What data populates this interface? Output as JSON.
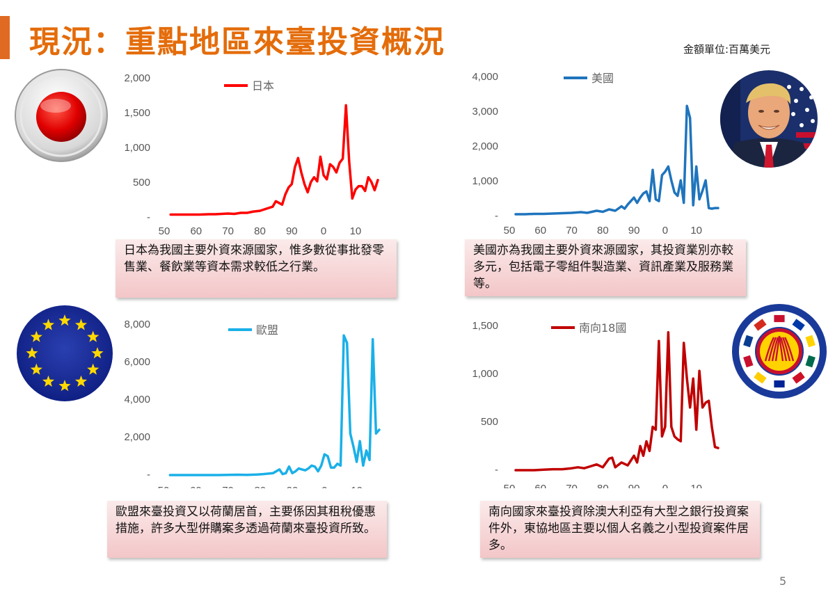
{
  "header": {
    "title": "現況：重點地區來臺投資概況",
    "unit": "金額單位:百萬美元"
  },
  "page_number": "5",
  "x_ticks": [
    "50",
    "60",
    "70",
    "80",
    "90",
    "0",
    "10"
  ],
  "notes": {
    "japan": "日本為我國主要外資來源國家，惟多數從事批發零售業、餐飲業等資本需求較低之行業。",
    "usa": "美國亦為我國主要外資來源國家，其投資業別亦較多元，包括電子零組件製造業、資訊產業及服務業等。",
    "eu": "歐盟來臺投資又以荷蘭居首，主要係因其租稅優惠措施，許多大型併購案多透過荷蘭來臺投資所致。",
    "south": "南向國家來臺投資除澳大利亞有大型之銀行投資案件外，東協地區主要以個人名義之小型投資案件居多。"
  },
  "icons": {
    "japan": "japan-flag-icon",
    "usa": "us-president-photo-icon",
    "eu": "eu-flag-icon",
    "south": "asean-emblem-icon"
  },
  "chart_data": [
    {
      "type": "line",
      "series": [
        {
          "name": "日本",
          "color": "#ff0000",
          "x": [
            1952,
            1955,
            1958,
            1961,
            1964,
            1966,
            1968,
            1970,
            1972,
            1974,
            1976,
            1978,
            1980,
            1982,
            1984,
            1985,
            1987,
            1988,
            1989,
            1990,
            1991,
            1992,
            1993,
            1994,
            1995,
            1996,
            1997,
            1998,
            1999,
            2000,
            2001,
            2002,
            2003,
            2004,
            2005,
            2006,
            2007,
            2008,
            2009,
            2010,
            2011,
            2012,
            2013,
            2014,
            2015,
            2016,
            2017
          ],
          "values": [
            5,
            5,
            5,
            5,
            10,
            10,
            15,
            20,
            15,
            30,
            30,
            50,
            60,
            90,
            120,
            200,
            150,
            300,
            400,
            450,
            700,
            830,
            620,
            450,
            330,
            480,
            550,
            490,
            850,
            580,
            520,
            740,
            700,
            620,
            760,
            820,
            1600,
            780,
            240,
            370,
            420,
            420,
            350,
            550,
            480,
            360,
            510
          ]
        }
      ],
      "yticks": [
        "2,000",
        "1,500",
        "1,000",
        "500",
        "-"
      ],
      "ylim": [
        0,
        2000
      ],
      "xlim": [
        1950,
        2017
      ],
      "legend": "top"
    },
    {
      "type": "line",
      "series": [
        {
          "name": "美國",
          "color": "#1f74bd",
          "x": [
            1952,
            1955,
            1958,
            1961,
            1964,
            1967,
            1970,
            1973,
            1975,
            1978,
            1980,
            1982,
            1984,
            1986,
            1987,
            1988,
            1990,
            1991,
            1992,
            1993,
            1994,
            1995,
            1996,
            1997,
            1998,
            1999,
            2000,
            2001,
            2002,
            2003,
            2004,
            2005,
            2006,
            2007,
            2008,
            2009,
            2010,
            2011,
            2012,
            2013,
            2014,
            2015,
            2016,
            2017
          ],
          "values": [
            20,
            20,
            30,
            30,
            40,
            50,
            60,
            80,
            60,
            120,
            90,
            160,
            120,
            250,
            180,
            300,
            500,
            350,
            500,
            620,
            680,
            400,
            1300,
            450,
            400,
            1150,
            1250,
            1400,
            1000,
            650,
            550,
            1000,
            350,
            3150,
            2800,
            280,
            1400,
            450,
            700,
            1000,
            200,
            180,
            200,
            200
          ]
        }
      ],
      "yticks": [
        "4,000",
        "3,000",
        "2,000",
        "1,000",
        "-"
      ],
      "ylim": [
        0,
        4000
      ],
      "xlim": [
        1950,
        2017
      ],
      "legend": "top"
    },
    {
      "type": "line",
      "series": [
        {
          "name": "歐盟",
          "color": "#1ab0e8",
          "x": [
            1952,
            1955,
            1958,
            1961,
            1964,
            1967,
            1970,
            1973,
            1976,
            1979,
            1981,
            1984,
            1986,
            1987,
            1988,
            1989,
            1990,
            1991,
            1992,
            1993,
            1994,
            1995,
            1996,
            1997,
            1998,
            1999,
            2000,
            2001,
            2002,
            2003,
            2004,
            2005,
            2006,
            2007,
            2008,
            2009,
            2010,
            2011,
            2012,
            2013,
            2014,
            2015,
            2016,
            2017
          ],
          "values": [
            0,
            0,
            0,
            0,
            0,
            0,
            10,
            20,
            10,
            30,
            50,
            100,
            300,
            50,
            100,
            450,
            100,
            200,
            350,
            300,
            250,
            350,
            500,
            450,
            200,
            500,
            1100,
            1000,
            400,
            400,
            600,
            500,
            7400,
            7000,
            2200,
            1500,
            700,
            1800,
            500,
            1300,
            800,
            7200,
            2200,
            2400
          ]
        }
      ],
      "yticks": [
        "8,000",
        "6,000",
        "4,000",
        "2,000",
        "-"
      ],
      "ylim": [
        0,
        8000
      ],
      "xlim": [
        1950,
        2017
      ],
      "legend": "top"
    },
    {
      "type": "line",
      "series": [
        {
          "name": "南向18國",
          "color": "#c00000",
          "x": [
            1952,
            1955,
            1958,
            1961,
            1964,
            1967,
            1970,
            1972,
            1974,
            1976,
            1978,
            1980,
            1982,
            1983,
            1984,
            1986,
            1988,
            1990,
            1991,
            1992,
            1993,
            1994,
            1995,
            1996,
            1997,
            1998,
            1999,
            2000,
            2001,
            2002,
            2003,
            2004,
            2005,
            2006,
            2007,
            2008,
            2009,
            2010,
            2011,
            2012,
            2013,
            2014,
            2015,
            2016,
            2017
          ],
          "values": [
            0,
            0,
            0,
            5,
            10,
            10,
            20,
            30,
            20,
            40,
            60,
            30,
            120,
            130,
            30,
            80,
            50,
            150,
            80,
            250,
            150,
            300,
            200,
            450,
            420,
            1340,
            350,
            450,
            1430,
            450,
            350,
            320,
            300,
            1320,
            950,
            650,
            950,
            420,
            1030,
            650,
            700,
            720,
            450,
            240,
            230
          ]
        }
      ],
      "yticks": [
        "1,500",
        "1,000",
        "500",
        "-"
      ],
      "ylim": [
        0,
        1500
      ],
      "xlim": [
        1950,
        2017
      ],
      "legend": "top"
    }
  ]
}
